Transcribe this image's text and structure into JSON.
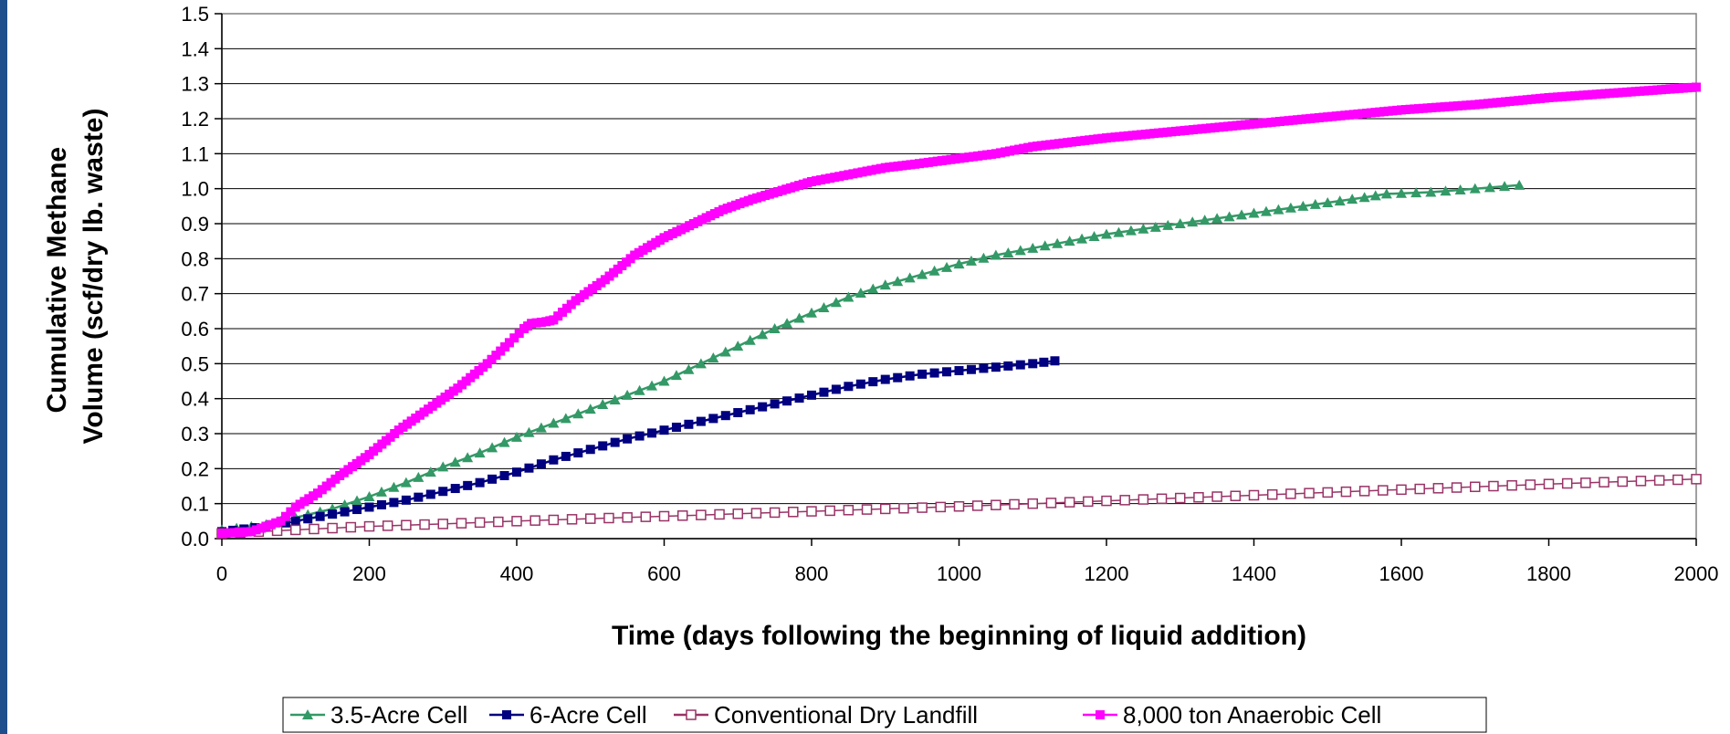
{
  "chart_data": {
    "type": "line",
    "title": "",
    "xlabel": "Time (days following the beginning of liquid addition)",
    "ylabel_lines": [
      "Cumulative Methane",
      "Volume (scf/dry lb. waste)"
    ],
    "xlim": [
      0,
      2000
    ],
    "ylim": [
      0,
      1.5
    ],
    "x_ticks": [
      0,
      200,
      400,
      600,
      800,
      1000,
      1200,
      1400,
      1600,
      1800,
      2000
    ],
    "y_ticks": [
      0.0,
      0.1,
      0.2,
      0.3,
      0.4,
      0.5,
      0.6,
      0.7,
      0.8,
      0.9,
      1.0,
      1.1,
      1.2,
      1.3,
      1.4,
      1.5
    ],
    "y_tick_labels": [
      "0.0",
      "0.1",
      "0.2",
      "0.3",
      "0.4",
      "0.5",
      "0.6",
      "0.7",
      "0.8",
      "0.9",
      "1.0",
      "1.1",
      "1.2",
      "1.3",
      "1.4",
      "1.5"
    ],
    "grid": "horizontal",
    "legend_position": "bottom",
    "series": [
      {
        "name": "3.5-Acre Cell",
        "color": "#339966",
        "marker": "triangle",
        "marker_every": 18,
        "points": [
          [
            0,
            0.025
          ],
          [
            60,
            0.04
          ],
          [
            100,
            0.06
          ],
          [
            150,
            0.085
          ],
          [
            200,
            0.12
          ],
          [
            250,
            0.16
          ],
          [
            300,
            0.205
          ],
          [
            350,
            0.245
          ],
          [
            400,
            0.29
          ],
          [
            450,
            0.33
          ],
          [
            500,
            0.37
          ],
          [
            550,
            0.41
          ],
          [
            600,
            0.45
          ],
          [
            650,
            0.5
          ],
          [
            700,
            0.55
          ],
          [
            750,
            0.6
          ],
          [
            800,
            0.645
          ],
          [
            850,
            0.69
          ],
          [
            900,
            0.725
          ],
          [
            950,
            0.755
          ],
          [
            1000,
            0.785
          ],
          [
            1050,
            0.81
          ],
          [
            1100,
            0.83
          ],
          [
            1150,
            0.85
          ],
          [
            1200,
            0.87
          ],
          [
            1250,
            0.885
          ],
          [
            1300,
            0.9
          ],
          [
            1350,
            0.915
          ],
          [
            1400,
            0.93
          ],
          [
            1450,
            0.945
          ],
          [
            1500,
            0.96
          ],
          [
            1550,
            0.975
          ],
          [
            1580,
            0.985
          ],
          [
            1640,
            0.99
          ],
          [
            1700,
            1.0
          ],
          [
            1760,
            1.01
          ]
        ]
      },
      {
        "name": "6-Acre Cell",
        "color": "#000080",
        "marker": "square",
        "marker_every": 16,
        "points": [
          [
            0,
            0.02
          ],
          [
            60,
            0.035
          ],
          [
            100,
            0.05
          ],
          [
            150,
            0.07
          ],
          [
            200,
            0.09
          ],
          [
            250,
            0.11
          ],
          [
            300,
            0.135
          ],
          [
            350,
            0.16
          ],
          [
            400,
            0.19
          ],
          [
            450,
            0.225
          ],
          [
            500,
            0.255
          ],
          [
            550,
            0.285
          ],
          [
            600,
            0.31
          ],
          [
            650,
            0.335
          ],
          [
            700,
            0.36
          ],
          [
            750,
            0.385
          ],
          [
            800,
            0.41
          ],
          [
            850,
            0.435
          ],
          [
            900,
            0.455
          ],
          [
            950,
            0.47
          ],
          [
            1000,
            0.48
          ],
          [
            1050,
            0.49
          ],
          [
            1100,
            0.5
          ],
          [
            1130,
            0.508
          ]
        ]
      },
      {
        "name": "Conventional Dry Landfill",
        "color": "#993366",
        "marker": "open-square",
        "marker_every": 4,
        "points": [
          [
            0,
            0.015
          ],
          [
            100,
            0.025
          ],
          [
            200,
            0.035
          ],
          [
            300,
            0.042
          ],
          [
            400,
            0.05
          ],
          [
            500,
            0.057
          ],
          [
            600,
            0.064
          ],
          [
            700,
            0.071
          ],
          [
            800,
            0.078
          ],
          [
            900,
            0.085
          ],
          [
            1000,
            0.092
          ],
          [
            1100,
            0.1
          ],
          [
            1200,
            0.108
          ],
          [
            1300,
            0.116
          ],
          [
            1400,
            0.124
          ],
          [
            1500,
            0.132
          ],
          [
            1600,
            0.14
          ],
          [
            1700,
            0.148
          ],
          [
            1800,
            0.156
          ],
          [
            1900,
            0.163
          ],
          [
            2000,
            0.17
          ]
        ]
      },
      {
        "name": "8,000 ton Anaerobic Cell",
        "color": "#FF00FF",
        "marker": "square",
        "marker_every": 6,
        "points": [
          [
            0,
            0.015
          ],
          [
            40,
            0.02
          ],
          [
            60,
            0.035
          ],
          [
            80,
            0.05
          ],
          [
            100,
            0.09
          ],
          [
            130,
            0.13
          ],
          [
            160,
            0.18
          ],
          [
            200,
            0.24
          ],
          [
            240,
            0.31
          ],
          [
            280,
            0.37
          ],
          [
            320,
            0.43
          ],
          [
            360,
            0.5
          ],
          [
            390,
            0.56
          ],
          [
            410,
            0.6
          ],
          [
            420,
            0.615
          ],
          [
            440,
            0.62
          ],
          [
            450,
            0.625
          ],
          [
            480,
            0.68
          ],
          [
            520,
            0.74
          ],
          [
            560,
            0.81
          ],
          [
            600,
            0.86
          ],
          [
            640,
            0.9
          ],
          [
            680,
            0.94
          ],
          [
            720,
            0.97
          ],
          [
            760,
            0.995
          ],
          [
            800,
            1.02
          ],
          [
            850,
            1.04
          ],
          [
            900,
            1.06
          ],
          [
            940,
            1.07
          ],
          [
            1050,
            1.1
          ],
          [
            1100,
            1.12
          ],
          [
            1200,
            1.145
          ],
          [
            1300,
            1.165
          ],
          [
            1400,
            1.185
          ],
          [
            1500,
            1.205
          ],
          [
            1600,
            1.225
          ],
          [
            1700,
            1.24
          ],
          [
            1800,
            1.26
          ],
          [
            1900,
            1.275
          ],
          [
            2000,
            1.29
          ]
        ]
      }
    ]
  }
}
